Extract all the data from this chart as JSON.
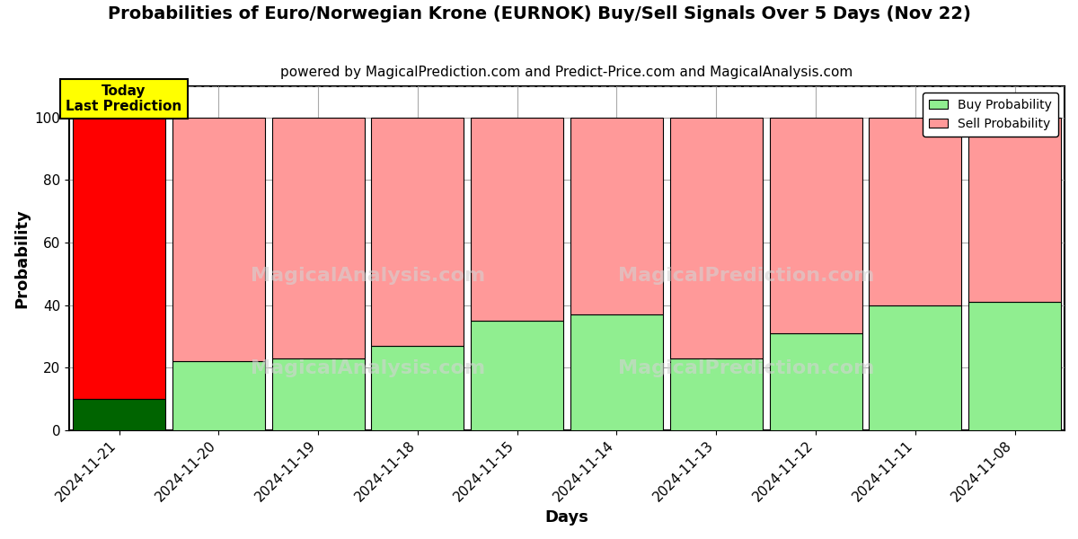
{
  "title": "Probabilities of Euro/Norwegian Krone (EURNOK) Buy/Sell Signals Over 5 Days (Nov 22)",
  "subtitle": "powered by MagicalPrediction.com and Predict-Price.com and MagicalAnalysis.com",
  "xlabel": "Days",
  "ylabel": "Probability",
  "categories": [
    "2024-11-21",
    "2024-11-20",
    "2024-11-19",
    "2024-11-18",
    "2024-11-15",
    "2024-11-14",
    "2024-11-13",
    "2024-11-12",
    "2024-11-11",
    "2024-11-08"
  ],
  "buy_values": [
    10,
    22,
    23,
    27,
    35,
    37,
    23,
    31,
    40,
    41
  ],
  "sell_values": [
    90,
    78,
    77,
    73,
    65,
    63,
    77,
    69,
    60,
    59
  ],
  "today_buy_color": "#006400",
  "today_sell_color": "#FF0000",
  "buy_color": "#90EE90",
  "sell_color": "#FF9999",
  "today_label_bg": "#FFFF00",
  "today_label_text": "Today\nLast Prediction",
  "ylim": [
    0,
    110
  ],
  "yticks": [
    0,
    20,
    40,
    60,
    80,
    100
  ],
  "dashed_line_y": 110,
  "watermark1": "MagicalAnalysis.com",
  "watermark2": "MagicalPrediction.com",
  "background_color": "#ffffff",
  "grid_color": "#aaaaaa",
  "title_fontsize": 14,
  "subtitle_fontsize": 11,
  "axis_label_fontsize": 13,
  "tick_fontsize": 11,
  "bar_width": 0.93
}
